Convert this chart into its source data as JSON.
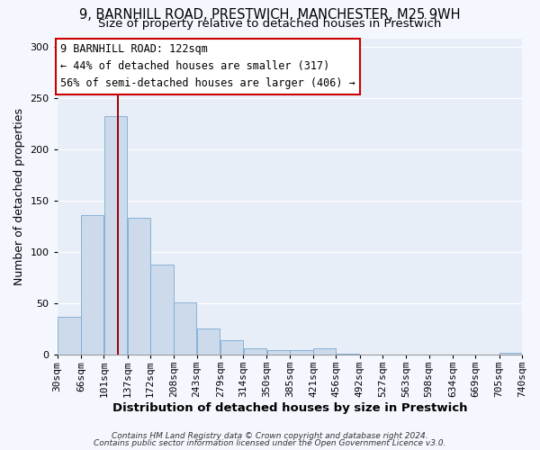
{
  "title_line1": "9, BARNHILL ROAD, PRESTWICH, MANCHESTER, M25 9WH",
  "title_line2": "Size of property relative to detached houses in Prestwich",
  "xlabel": "Distribution of detached houses by size in Prestwich",
  "ylabel": "Number of detached properties",
  "bar_color": "#ccdaeb",
  "bar_edge_color": "#7aaad0",
  "background_color": "#e8eef8",
  "fig_background": "#f5f7ff",
  "grid_color": "#ffffff",
  "bins": [
    30,
    66,
    101,
    137,
    172,
    208,
    243,
    279,
    314,
    350,
    385,
    421,
    456,
    492,
    527,
    563,
    598,
    634,
    669,
    705,
    740
  ],
  "bin_labels": [
    "30sqm",
    "66sqm",
    "101sqm",
    "137sqm",
    "172sqm",
    "208sqm",
    "243sqm",
    "279sqm",
    "314sqm",
    "350sqm",
    "385sqm",
    "421sqm",
    "456sqm",
    "492sqm",
    "527sqm",
    "563sqm",
    "598sqm",
    "634sqm",
    "669sqm",
    "705sqm",
    "740sqm"
  ],
  "values": [
    37,
    136,
    232,
    133,
    88,
    51,
    25,
    14,
    6,
    4,
    4,
    6,
    1,
    0,
    0,
    0,
    0,
    0,
    0,
    2
  ],
  "ylim": [
    0,
    308
  ],
  "yticks": [
    0,
    50,
    100,
    150,
    200,
    250,
    300
  ],
  "vline_x": 122,
  "vline_color": "#990000",
  "annotation_text_line1": "9 BARNHILL ROAD: 122sqm",
  "annotation_text_line2": "← 44% of detached houses are smaller (317)",
  "annotation_text_line3": "56% of semi-detached houses are larger (406) →",
  "annotation_box_facecolor": "#ffffff",
  "annotation_box_edgecolor": "#cc0000",
  "footer_line1": "Contains HM Land Registry data © Crown copyright and database right 2024.",
  "footer_line2": "Contains public sector information licensed under the Open Government Licence v3.0.",
  "title_fontsize": 10.5,
  "subtitle_fontsize": 9.5,
  "xlabel_fontsize": 9.5,
  "ylabel_fontsize": 9,
  "tick_fontsize": 8,
  "annotation_fontsize": 8.5,
  "footer_fontsize": 6.5
}
